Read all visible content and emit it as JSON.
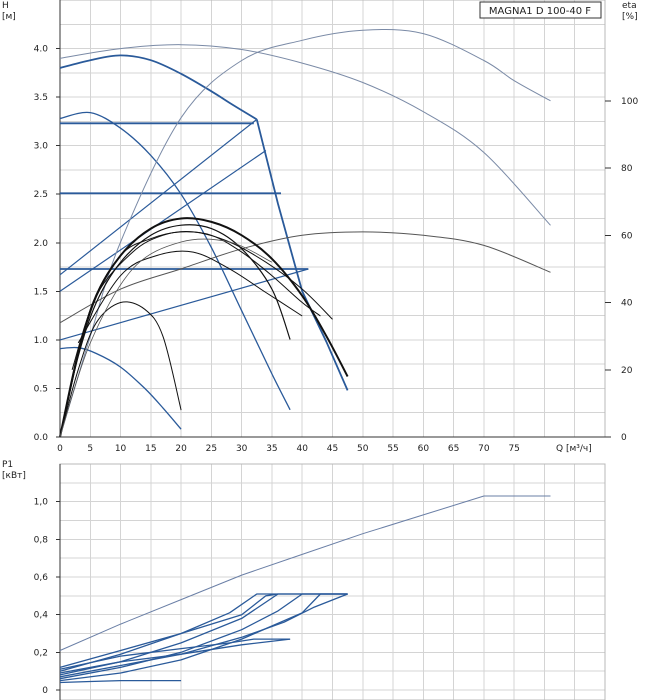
{
  "chart_data": [
    {
      "type": "line",
      "title": "MAGNA1 D 100-40 F",
      "y_label": "H",
      "y_unit": "[м]",
      "y2_label": "eta",
      "y2_unit": "[%]",
      "x_label": "Q [м³/ч]",
      "x_range": [
        0,
        90
      ],
      "x_ticks": [
        0,
        5,
        10,
        15,
        20,
        25,
        30,
        35,
        40,
        45,
        50,
        55,
        60,
        65,
        70,
        75
      ],
      "y_range": [
        0,
        4.5
      ],
      "y_ticks": [
        0.0,
        0.5,
        1.0,
        1.5,
        2.0,
        2.5,
        3.0,
        3.5,
        4.0
      ],
      "y2_range": [
        0,
        130
      ],
      "y2_ticks": [
        0,
        20,
        40,
        60,
        80,
        100
      ],
      "grid": true,
      "series": [
        {
          "name": "",
          "kind": "head-max",
          "color": "#2a5a9a",
          "width": 1.8,
          "points": [
            [
              0,
              3.8
            ],
            [
              5,
              3.88
            ],
            [
              10,
              3.93
            ],
            [
              15,
              3.88
            ],
            [
              20,
              3.74
            ],
            [
              25,
              3.56
            ],
            [
              28,
              3.44
            ],
            [
              32.5,
              3.27
            ]
          ]
        },
        {
          "name": "",
          "kind": "head-max-falloff",
          "color": "#2a5a9a",
          "width": 1.8,
          "points": [
            [
              32.5,
              3.27
            ],
            [
              36,
              2.4
            ],
            [
              40,
              1.5
            ],
            [
              44,
              0.98
            ],
            [
              47.5,
              0.48
            ]
          ]
        },
        {
          "name": "",
          "kind": "cp-line",
          "color": "#2a5a9a",
          "width": 1.2,
          "points": [
            [
              0,
              1.67
            ],
            [
              32.5,
              3.27
            ]
          ]
        },
        {
          "name": "",
          "kind": "cp-line",
          "color": "#2a5a9a",
          "width": 1.2,
          "points": [
            [
              0,
              1.5
            ],
            [
              34,
              2.95
            ]
          ]
        },
        {
          "name": "",
          "kind": "cp-line",
          "color": "#2a5a9a",
          "width": 1.2,
          "points": [
            [
              0,
              1.0
            ],
            [
              41,
              1.73
            ]
          ]
        },
        {
          "name": "",
          "kind": "cc-line",
          "color": "#2a5a9a",
          "width": 1.8,
          "points": [
            [
              0,
              3.23
            ],
            [
              32,
              3.23
            ]
          ]
        },
        {
          "name": "",
          "kind": "cc-line",
          "color": "#2a5a9a",
          "width": 1.8,
          "points": [
            [
              0,
              2.51
            ],
            [
              36.5,
              2.51
            ]
          ]
        },
        {
          "name": "",
          "kind": "cc-line",
          "color": "#2a5a9a",
          "width": 1.8,
          "points": [
            [
              0,
              1.73
            ],
            [
              41,
              1.73
            ]
          ]
        },
        {
          "name": "",
          "kind": "head-mid",
          "color": "#2a5a9a",
          "width": 1.3,
          "points": [
            [
              0,
              3.28
            ],
            [
              5,
              3.34
            ],
            [
              10,
              3.18
            ],
            [
              15,
              2.9
            ],
            [
              20,
              2.5
            ],
            [
              25,
              1.95
            ],
            [
              30,
              1.3
            ],
            [
              35,
              0.65
            ],
            [
              38,
              0.28
            ]
          ]
        },
        {
          "name": "",
          "kind": "head-min",
          "color": "#2a5a9a",
          "width": 1.3,
          "points": [
            [
              0,
              0.91
            ],
            [
              3,
              0.92
            ],
            [
              6,
              0.86
            ],
            [
              10,
              0.72
            ],
            [
              14,
              0.5
            ],
            [
              17,
              0.3
            ],
            [
              20,
              0.08
            ]
          ]
        },
        {
          "name": "",
          "kind": "eta-envelope",
          "color": "#7a8aa6",
          "width": 1.0,
          "points": [
            [
              0,
              0
            ],
            [
              5,
              30
            ],
            [
              10,
              58
            ],
            [
              20,
              95
            ],
            [
              30,
              112
            ],
            [
              40,
              118
            ],
            [
              50,
              121
            ],
            [
              60,
              120
            ],
            [
              70,
              112
            ],
            [
              75,
              106
            ],
            [
              81,
              100
            ]
          ]
        },
        {
          "name": "",
          "kind": "head-envelope",
          "color": "#7a8aa6",
          "width": 1.0,
          "points": [
            [
              0,
              3.9
            ],
            [
              10,
              4.0
            ],
            [
              20,
              4.04
            ],
            [
              30,
              3.99
            ],
            [
              40,
              3.85
            ],
            [
              50,
              3.65
            ],
            [
              60,
              3.35
            ],
            [
              70,
              2.93
            ],
            [
              81,
              2.18
            ]
          ]
        },
        {
          "name": "",
          "kind": "eta-flat",
          "color": "#555555",
          "width": 1.0,
          "points": [
            [
              0,
              34
            ],
            [
              10,
              44
            ],
            [
              20,
              50
            ],
            [
              30,
              56
            ],
            [
              40,
              60
            ],
            [
              50,
              61
            ],
            [
              60,
              60
            ],
            [
              70,
              57
            ],
            [
              81,
              49
            ]
          ]
        },
        {
          "name": "",
          "kind": "eta-main",
          "color": "#111111",
          "width": 2.0,
          "points": [
            [
              0,
              0
            ],
            [
              3,
              25
            ],
            [
              6,
              42
            ],
            [
              10,
              54
            ],
            [
              15,
              62
            ],
            [
              20,
              65
            ],
            [
              25,
              64
            ],
            [
              30,
              60
            ],
            [
              35,
              53
            ],
            [
              40,
              42
            ],
            [
              44,
              30
            ],
            [
              47.5,
              18
            ]
          ]
        },
        {
          "name": "",
          "kind": "eta-variant",
          "color": "#111111",
          "width": 1.2,
          "points": [
            [
              0,
              0
            ],
            [
              3,
              24
            ],
            [
              6,
              40
            ],
            [
              10,
              52
            ],
            [
              15,
              60
            ],
            [
              20,
              63
            ],
            [
              25,
              62
            ],
            [
              30,
              56
            ],
            [
              35,
              44
            ],
            [
              38,
              29
            ]
          ]
        },
        {
          "name": "",
          "kind": "eta-variant",
          "color": "#111111",
          "width": 1.0,
          "points": [
            [
              1,
              8
            ],
            [
              5,
              38
            ],
            [
              10,
              54
            ],
            [
              15,
              59
            ],
            [
              20,
              61
            ],
            [
              25,
              60
            ],
            [
              30,
              55
            ],
            [
              35,
              48
            ],
            [
              40,
              40
            ],
            [
              43,
              36
            ]
          ]
        },
        {
          "name": "",
          "kind": "eta-variant",
          "color": "#111111",
          "width": 1.0,
          "points": [
            [
              2,
              20
            ],
            [
              6,
              42
            ],
            [
              12,
              55
            ],
            [
              17,
              60
            ],
            [
              22,
              61
            ],
            [
              28,
              58
            ],
            [
              34,
              52
            ],
            [
              40,
              44
            ],
            [
              45,
              35
            ]
          ]
        },
        {
          "name": "",
          "kind": "eta-variant",
          "color": "#111111",
          "width": 1.0,
          "points": [
            [
              3,
              28
            ],
            [
              10,
              48
            ],
            [
              16,
              54
            ],
            [
              22,
              55
            ],
            [
              28,
              50
            ],
            [
              34,
              43
            ],
            [
              40,
              36
            ]
          ]
        },
        {
          "name": "",
          "kind": "eta-variant",
          "color": "#111111",
          "width": 1.0,
          "points": [
            [
              0,
              0
            ],
            [
              3,
              20
            ],
            [
              6,
              34
            ],
            [
              10,
              40
            ],
            [
              14,
              38
            ],
            [
              17,
              30
            ],
            [
              20,
              8
            ]
          ]
        },
        {
          "name": "",
          "kind": "eta-variant",
          "color": "#555555",
          "width": 0.8,
          "points": [
            [
              0,
              0
            ],
            [
              5,
              28
            ],
            [
              12,
              50
            ],
            [
              20,
              58
            ],
            [
              28,
              58
            ],
            [
              35,
              52
            ]
          ]
        }
      ]
    },
    {
      "type": "line",
      "title": "",
      "y_label": "P1",
      "y_unit": "[кВт]",
      "x_range": [
        0,
        90
      ],
      "y_range": [
        0,
        1.2
      ],
      "y_ticks": [
        "0",
        "0,2",
        "0,4",
        "0,6",
        "0,8",
        "1,0"
      ],
      "y_tick_values": [
        0,
        0.2,
        0.4,
        0.6,
        0.8,
        1.0
      ],
      "grid": true,
      "series": [
        {
          "name": "",
          "kind": "p1-envelope",
          "color": "#6a7fa6",
          "width": 1.0,
          "points": [
            [
              0,
              0.21
            ],
            [
              10,
              0.35
            ],
            [
              20,
              0.48
            ],
            [
              30,
              0.61
            ],
            [
              40,
              0.72
            ],
            [
              50,
              0.83
            ],
            [
              60,
              0.93
            ],
            [
              70,
              1.03
            ],
            [
              81,
              1.03
            ]
          ]
        },
        {
          "name": "",
          "kind": "p1",
          "color": "#2a5a9a",
          "width": 1.3,
          "points": [
            [
              0,
              0.1
            ],
            [
              10,
              0.19
            ],
            [
              20,
              0.3
            ],
            [
              28,
              0.41
            ],
            [
              32.5,
              0.51
            ],
            [
              47.5,
              0.51
            ]
          ]
        },
        {
          "name": "",
          "kind": "p1",
          "color": "#2a5a9a",
          "width": 1.3,
          "points": [
            [
              0,
              0.08
            ],
            [
              10,
              0.15
            ],
            [
              20,
              0.25
            ],
            [
              30,
              0.38
            ],
            [
              36,
              0.51
            ],
            [
              47.5,
              0.51
            ]
          ]
        },
        {
          "name": "",
          "kind": "p1",
          "color": "#2a5a9a",
          "width": 1.3,
          "points": [
            [
              0,
              0.06
            ],
            [
              10,
              0.12
            ],
            [
              20,
              0.2
            ],
            [
              30,
              0.32
            ],
            [
              36,
              0.42
            ],
            [
              40,
              0.51
            ],
            [
              47.5,
              0.51
            ]
          ]
        },
        {
          "name": "",
          "kind": "p1",
          "color": "#2a5a9a",
          "width": 1.3,
          "points": [
            [
              0,
              0.05
            ],
            [
              10,
              0.09
            ],
            [
              20,
              0.16
            ],
            [
              30,
              0.27
            ],
            [
              40,
              0.41
            ],
            [
              43,
              0.51
            ],
            [
              47.5,
              0.51
            ]
          ]
        },
        {
          "name": "",
          "kind": "p1",
          "color": "#2a5a9a",
          "width": 1.3,
          "points": [
            [
              0,
              0.12
            ],
            [
              10,
              0.21
            ],
            [
              20,
              0.3
            ],
            [
              30,
              0.4
            ],
            [
              34,
              0.5
            ],
            [
              36,
              0.51
            ]
          ]
        },
        {
          "name": "",
          "kind": "p1",
          "color": "#2a5a9a",
          "width": 1.3,
          "points": [
            [
              0,
              0.11
            ],
            [
              10,
              0.18
            ],
            [
              20,
              0.22
            ],
            [
              28,
              0.25
            ],
            [
              32,
              0.27
            ],
            [
              38,
              0.27
            ]
          ]
        },
        {
          "name": "",
          "kind": "p1",
          "color": "#2a5a9a",
          "width": 1.3,
          "points": [
            [
              0,
              0.09
            ],
            [
              10,
              0.15
            ],
            [
              20,
              0.19
            ],
            [
              30,
              0.24
            ],
            [
              38,
              0.27
            ]
          ]
        },
        {
          "name": "",
          "kind": "p1",
          "color": "#2a5a9a",
          "width": 1.3,
          "points": [
            [
              0,
              0.04
            ],
            [
              5,
              0.045
            ],
            [
              10,
              0.05
            ],
            [
              20,
              0.05
            ]
          ]
        },
        {
          "name": "",
          "kind": "p1",
          "color": "#2a5a9a",
          "width": 1.3,
          "points": [
            [
              0,
              0.07
            ],
            [
              10,
              0.13
            ],
            [
              20,
              0.19
            ],
            [
              30,
              0.28
            ],
            [
              37,
              0.36
            ],
            [
              42,
              0.44
            ],
            [
              47.5,
              0.51
            ]
          ]
        }
      ]
    }
  ]
}
